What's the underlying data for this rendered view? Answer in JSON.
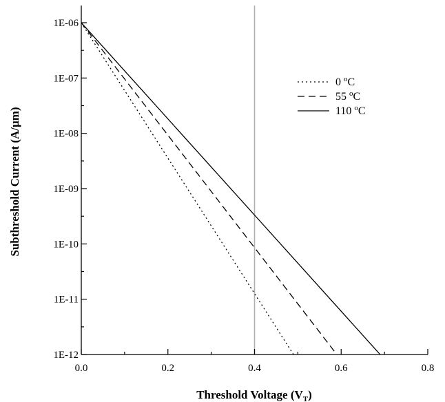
{
  "chart_data": {
    "type": "line",
    "xlabel": "Threshold Voltage (V",
    "xlabel_sub": "T",
    "xlabel_suffix": ")",
    "ylabel": "Subthreshold Current (A/µm)",
    "xlim": [
      0.0,
      0.8
    ],
    "ylim": [
      1e-12,
      1e-06
    ],
    "yscale": "log",
    "grid": false,
    "legend_position": "top-right",
    "x_ticks": [
      {
        "value": 0.0,
        "label": "0.0"
      },
      {
        "value": 0.2,
        "label": "0.2"
      },
      {
        "value": 0.4,
        "label": "0.4"
      },
      {
        "value": 0.6,
        "label": "0.6"
      },
      {
        "value": 0.8,
        "label": "0.8"
      }
    ],
    "y_ticks": [
      {
        "value": 1e-06,
        "label": "1E-06"
      },
      {
        "value": 1e-07,
        "label": "1E-07"
      },
      {
        "value": 1e-08,
        "label": "1E-08"
      },
      {
        "value": 1e-09,
        "label": "1E-09"
      },
      {
        "value": 1e-10,
        "label": "1E-10"
      },
      {
        "value": 1e-11,
        "label": "1E-11"
      },
      {
        "value": 1e-12,
        "label": "1E-12"
      }
    ],
    "reference_line": {
      "x": 0.4,
      "color": "#b0b0b0"
    },
    "series": [
      {
        "name": "0",
        "unit": "oC",
        "dash": "dotted",
        "x": [
          0.0,
          0.49
        ],
        "y": [
          1e-06,
          1e-12
        ]
      },
      {
        "name": "55",
        "unit": "oC",
        "dash": "dashed",
        "x": [
          0.0,
          0.59
        ],
        "y": [
          1e-06,
          1e-12
        ]
      },
      {
        "name": "110",
        "unit": "oC",
        "dash": "solid",
        "x": [
          0.0,
          0.69
        ],
        "y": [
          1e-06,
          1e-12
        ]
      }
    ]
  }
}
